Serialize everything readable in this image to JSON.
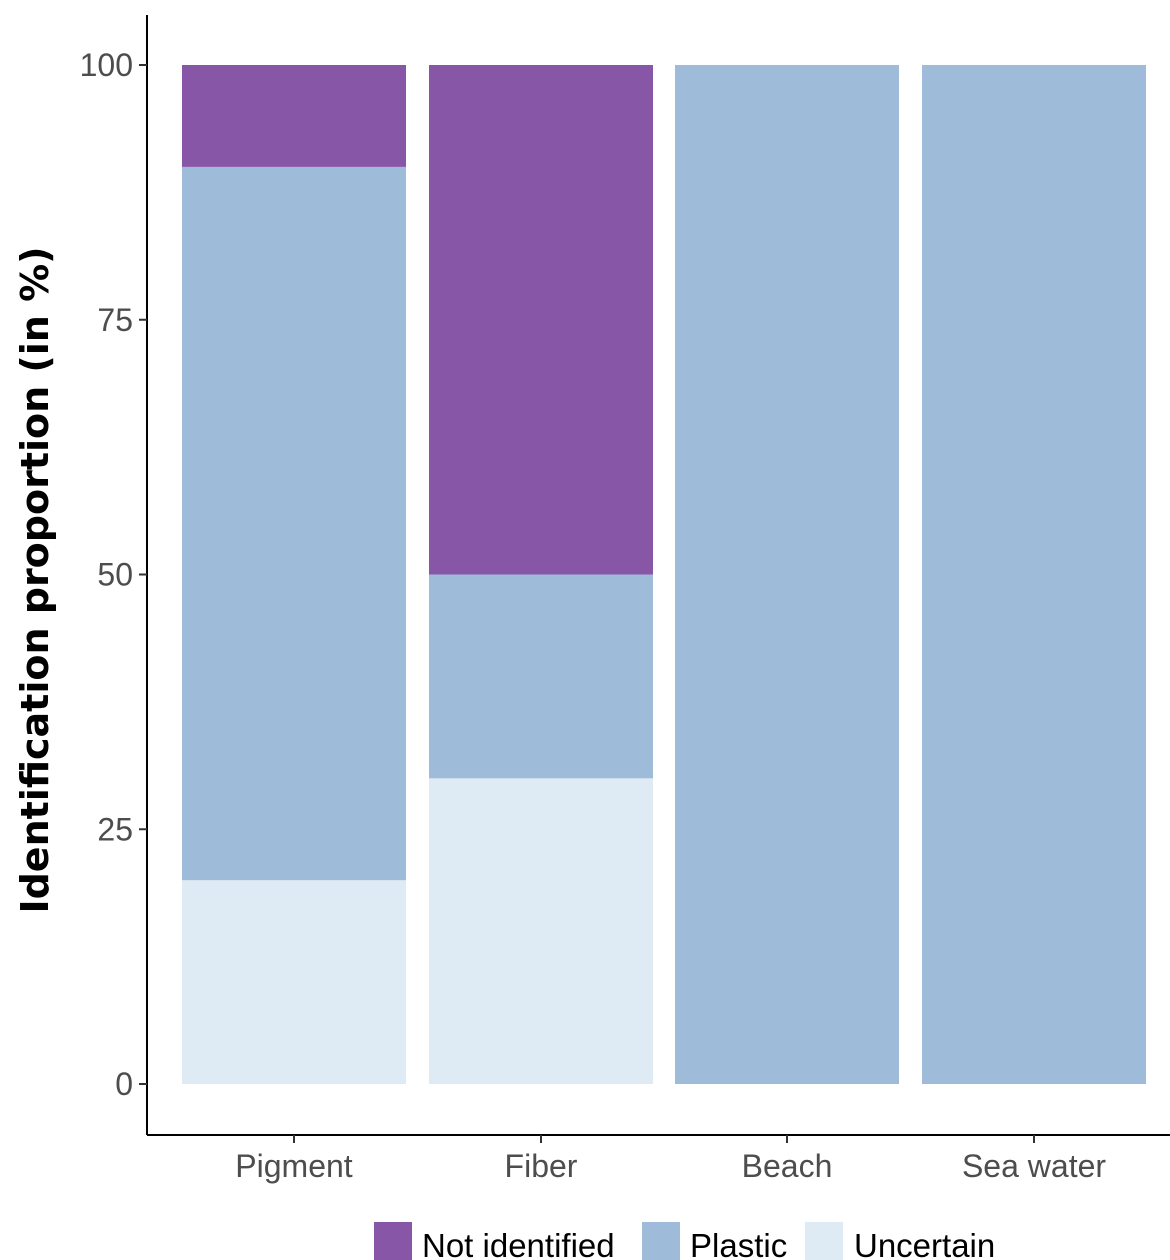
{
  "chart_data": {
    "type": "bar",
    "stacked": true,
    "categories": [
      "Pigment",
      "Fiber",
      "Beach",
      "Sea water"
    ],
    "series": [
      {
        "name": "Uncertain",
        "values": [
          20,
          30,
          0,
          0
        ],
        "color": "#deeaf4"
      },
      {
        "name": "Plastic",
        "values": [
          70,
          20,
          100,
          100
        ],
        "color": "#9ebbda"
      },
      {
        "name": "Not identified",
        "values": [
          10,
          50,
          0,
          0
        ],
        "color": "#8856a7"
      }
    ],
    "legend_order": [
      "Not identified",
      "Plastic",
      "Uncertain"
    ],
    "legend_position": "bottom",
    "xlabel": "",
    "ylabel": "Identification proportion (in %)",
    "ylim": [
      0,
      100
    ],
    "yticks": [
      0,
      25,
      50,
      75,
      100
    ],
    "grid": false
  }
}
